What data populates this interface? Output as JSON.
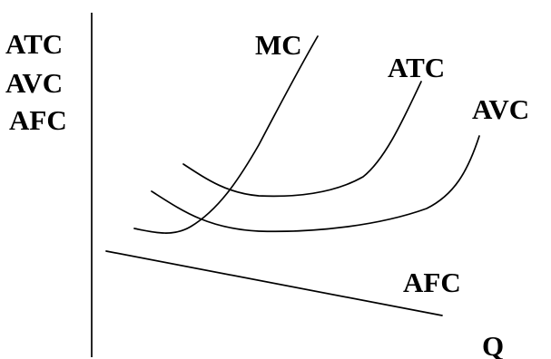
{
  "y_axis_labels": [
    "ATC",
    "AVC",
    "AFC"
  ],
  "x_axis_label": "Q",
  "curve_labels": {
    "mc": "MC",
    "atc": "ATC",
    "avc": "AVC",
    "afc": "AFC"
  },
  "stroke_color": "#000000",
  "background_color": "#ffffff"
}
